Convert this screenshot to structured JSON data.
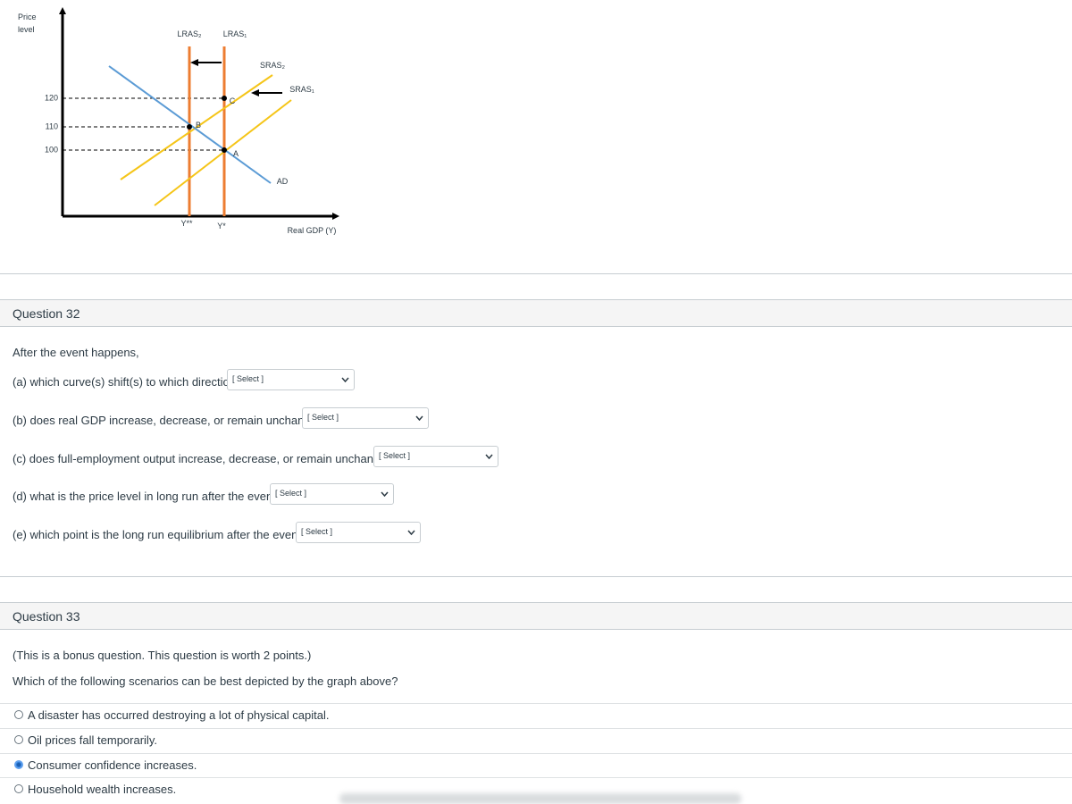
{
  "graph": {
    "y_axis_label_lines": [
      "Price",
      "level"
    ],
    "x_axis_label": "Real GDP (Y)",
    "price_ticks": [
      "120",
      "110",
      "100"
    ],
    "curves": {
      "lras2": "LRAS₂",
      "lras1": "LRAS₁",
      "sras2": "SRAS₂",
      "sras1": "SRAS₁",
      "ad": "AD"
    },
    "points": {
      "a": "A",
      "b": "B",
      "c": "C"
    },
    "output_labels": {
      "y2": "Y**",
      "y1": "Y*"
    }
  },
  "questions": [
    {
      "title": "Question 32",
      "intro": "After the event happens,",
      "parts": [
        {
          "text": "(a) which curve(s) shift(s) to which direction?",
          "select": "[ Select ]"
        },
        {
          "text": "(b) does real GDP increase, decrease, or remain unchanged?",
          "select": "[ Select ]"
        },
        {
          "text": "(c) does full-employment output increase, decrease, or remain unchanged?",
          "select": "[ Select ]"
        },
        {
          "text": "(d) what is the price level in long run after the event?",
          "select": "[ Select ]"
        },
        {
          "text": "(e) which point is the long run equilibrium after the event?",
          "select": "[ Select ]"
        }
      ]
    },
    {
      "title": "Question 33",
      "lines": [
        "(This is a bonus question. This question is worth 2 points.)",
        "Which of the following scenarios can be best depicted by the graph above?"
      ],
      "options": [
        {
          "label": "A disaster has occurred destroying a lot of physical capital.",
          "selected": false
        },
        {
          "label": "Oil prices fall temporarily.",
          "selected": false
        },
        {
          "label": "Consumer confidence increases.",
          "selected": true
        },
        {
          "label": "Household wealth increases.",
          "selected": false
        }
      ]
    }
  ]
}
